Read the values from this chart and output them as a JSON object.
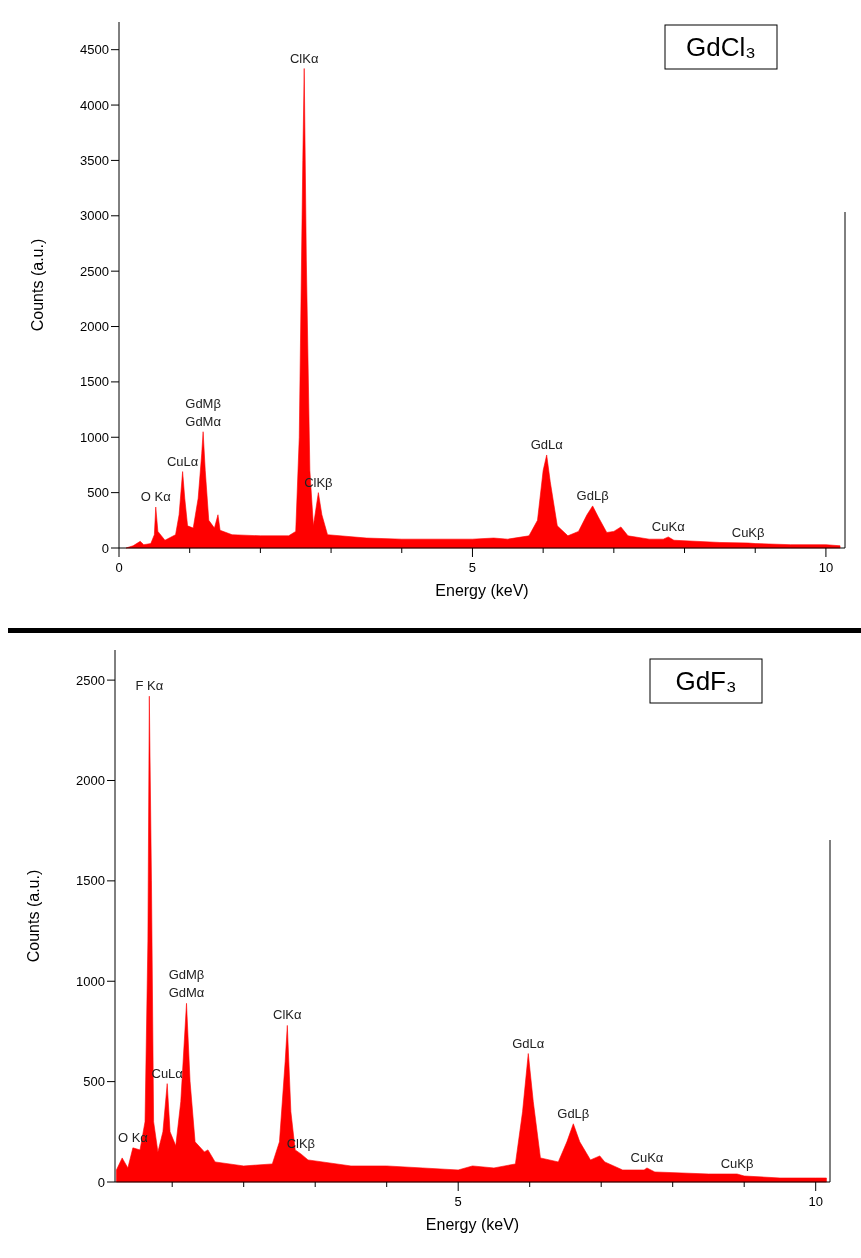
{
  "chart_data": [
    {
      "type": "area",
      "title": "GdCl₃",
      "xlabel": "Energy (keV)",
      "ylabel": "Counts (a.u.)",
      "xlim": [
        0,
        10.27
      ],
      "ylim": [
        0,
        4750
      ],
      "xticks": [
        0,
        {
          "value": 1,
          "label": null
        },
        {
          "value": 2,
          "label": null
        },
        {
          "value": 3,
          "label": null
        },
        {
          "value": 4,
          "label": null
        },
        5,
        {
          "value": 6,
          "label": null
        },
        {
          "value": 7,
          "label": null
        },
        {
          "value": 8,
          "label": null
        },
        {
          "value": 9,
          "label": null
        },
        10
      ],
      "yticks": [
        0,
        500,
        1000,
        1500,
        2000,
        2500,
        3000,
        3500,
        4000,
        4500
      ],
      "x": [
        0.1,
        0.2,
        0.3,
        0.35,
        0.45,
        0.5,
        0.52,
        0.55,
        0.65,
        0.8,
        0.85,
        0.9,
        0.93,
        0.97,
        1.05,
        1.12,
        1.17,
        1.19,
        1.22,
        1.27,
        1.35,
        1.4,
        1.43,
        1.6,
        2.0,
        2.4,
        2.5,
        2.55,
        2.6,
        2.62,
        2.65,
        2.7,
        2.75,
        2.82,
        2.87,
        2.95,
        3.5,
        4.0,
        5.0,
        5.3,
        5.5,
        5.8,
        5.92,
        6.0,
        6.05,
        6.1,
        6.2,
        6.35,
        6.5,
        6.62,
        6.7,
        6.78,
        6.9,
        7.0,
        7.1,
        7.2,
        7.5,
        7.7,
        7.77,
        7.85,
        8.5,
        8.9,
        9.0,
        9.5,
        10.0,
        10.2
      ],
      "series": [
        {
          "color": "#ff0000",
          "values": [
            0,
            20,
            60,
            30,
            40,
            120,
            370,
            150,
            70,
            120,
            300,
            690,
            450,
            200,
            180,
            450,
            850,
            1050,
            700,
            250,
            180,
            300,
            160,
            120,
            110,
            110,
            150,
            1000,
            3500,
            4330,
            2600,
            700,
            200,
            500,
            300,
            120,
            90,
            80,
            80,
            90,
            80,
            110,
            250,
            700,
            840,
            600,
            200,
            110,
            150,
            300,
            380,
            280,
            140,
            150,
            190,
            110,
            80,
            80,
            100,
            70,
            50,
            45,
            40,
            30,
            30,
            20
          ]
        }
      ],
      "annotations": [
        {
          "text": "ClKα",
          "x": 2.62,
          "y": 4330
        },
        {
          "text": "ClKβ",
          "x": 2.82,
          "y": 500
        },
        {
          "text": "GdMβ",
          "x": 1.19,
          "y": 1050
        },
        {
          "text": "GdMα",
          "x": 1.19,
          "y": 1050
        },
        {
          "text": "CuLα",
          "x": 0.9,
          "y": 690
        },
        {
          "text": "O Kα",
          "x": 0.52,
          "y": 370
        },
        {
          "text": "GdLα",
          "x": 6.05,
          "y": 840
        },
        {
          "text": "GdLβ",
          "x": 6.7,
          "y": 380
        },
        {
          "text": "CuKα",
          "x": 7.77,
          "y": 100
        },
        {
          "text": "CuKβ",
          "x": 8.9,
          "y": 45
        }
      ]
    },
    {
      "type": "area",
      "title": "GdF₃",
      "xlabel": "Energy (keV)",
      "ylabel": "Counts (a.u.)",
      "xlim": [
        0.2,
        10.2
      ],
      "ylim": [
        0,
        2650
      ],
      "xticks": [
        {
          "value": 1,
          "label": null
        },
        {
          "value": 2,
          "label": null
        },
        {
          "value": 3,
          "label": null
        },
        {
          "value": 4,
          "label": null
        },
        5,
        {
          "value": 6,
          "label": null
        },
        {
          "value": 7,
          "label": null
        },
        {
          "value": 8,
          "label": null
        },
        {
          "value": 9,
          "label": null
        },
        10
      ],
      "yticks": [
        0,
        500,
        1000,
        1500,
        2000,
        2500
      ],
      "x": [
        0.22,
        0.3,
        0.38,
        0.45,
        0.55,
        0.62,
        0.66,
        0.68,
        0.71,
        0.74,
        0.8,
        0.87,
        0.93,
        0.97,
        1.05,
        1.12,
        1.2,
        1.25,
        1.32,
        1.45,
        1.5,
        1.6,
        2.0,
        2.4,
        2.5,
        2.58,
        2.61,
        2.66,
        2.72,
        2.8,
        2.9,
        3.5,
        4.0,
        4.5,
        5.0,
        5.2,
        5.5,
        5.8,
        5.9,
        5.98,
        6.05,
        6.15,
        6.4,
        6.52,
        6.61,
        6.7,
        6.85,
        6.98,
        7.05,
        7.3,
        7.6,
        7.64,
        7.75,
        8.5,
        8.9,
        9.0,
        9.5,
        10.0,
        10.15
      ],
      "series": [
        {
          "color": "#ff0000",
          "values": [
            60,
            120,
            70,
            170,
            160,
            300,
            1200,
            2420,
            1500,
            300,
            150,
            250,
            490,
            250,
            180,
            400,
            890,
            500,
            200,
            150,
            160,
            100,
            80,
            90,
            200,
            600,
            780,
            350,
            160,
            140,
            110,
            80,
            80,
            70,
            60,
            80,
            70,
            90,
            350,
            640,
            400,
            120,
            100,
            200,
            290,
            200,
            110,
            130,
            100,
            60,
            60,
            70,
            50,
            40,
            40,
            30,
            20,
            20,
            20
          ]
        }
      ],
      "annotations": [
        {
          "text": "F Kα",
          "x": 0.68,
          "y": 2420
        },
        {
          "text": "O Kα",
          "x": 0.45,
          "y": 170
        },
        {
          "text": "GdMβ",
          "x": 1.2,
          "y": 890
        },
        {
          "text": "GdMα",
          "x": 1.2,
          "y": 890
        },
        {
          "text": "CuLα",
          "x": 0.93,
          "y": 490
        },
        {
          "text": "ClKα",
          "x": 2.61,
          "y": 780
        },
        {
          "text": "ClKβ",
          "x": 2.8,
          "y": 140
        },
        {
          "text": "GdLα",
          "x": 5.98,
          "y": 640
        },
        {
          "text": "GdLβ",
          "x": 6.61,
          "y": 290
        },
        {
          "text": "CuKα",
          "x": 7.64,
          "y": 70
        },
        {
          "text": "CuKβ",
          "x": 8.9,
          "y": 40
        }
      ]
    }
  ]
}
